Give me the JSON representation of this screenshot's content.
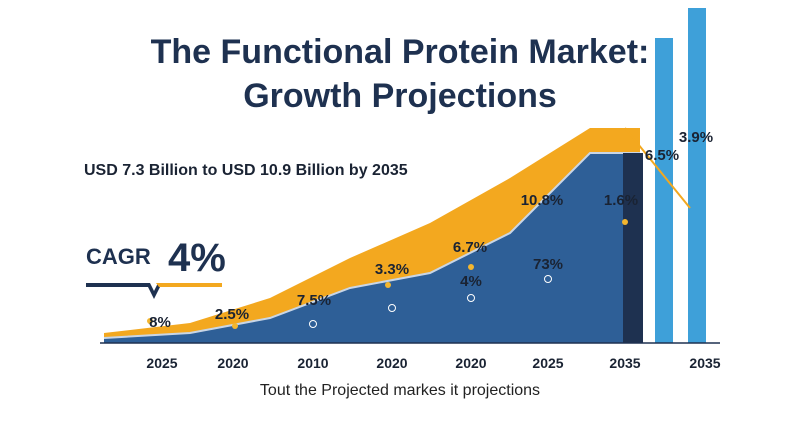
{
  "title_line1": "The Functional Protein Market:",
  "title_line2": "Growth Projections",
  "subtitle": "USD 7.3 Billion to USD 10.9 Billion by 2035",
  "cagr": {
    "label": "CAGR",
    "value": "4%"
  },
  "caption": "Tout the Projected markes it projections",
  "colors": {
    "area_front": "#2e5f97",
    "area_back": "#f3a81f",
    "bar_dark": "#1e3150",
    "bar_light": "#3ea0d9",
    "title": "#1e3150"
  },
  "chart_data": {
    "type": "area",
    "categories": [
      "2025",
      "2020",
      "2010",
      "2020",
      "2020",
      "2025",
      "2035",
      "2035"
    ],
    "series": [
      {
        "values": [
          1,
          2,
          5,
          11,
          14,
          22,
          38,
          38
        ]
      },
      {
        "values": [
          2,
          4,
          9,
          17,
          24,
          33,
          43,
          43
        ]
      }
    ],
    "bars": [
      {
        "values": [
          37,
          61,
          67
        ]
      }
    ],
    "labels": [
      "8%",
      "2.5%",
      "7.5%",
      "3.3%",
      "6.7%",
      "4%",
      "10.8%",
      "73%",
      "1.6%",
      "6.5%",
      "3.9%"
    ],
    "xlabel": "",
    "ylabel": "",
    "grid": false
  }
}
